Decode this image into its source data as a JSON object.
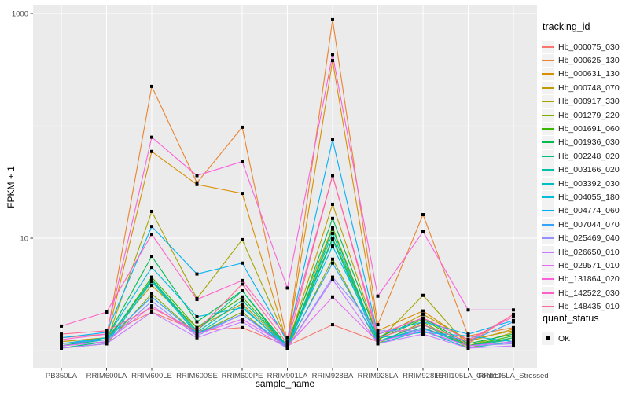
{
  "chart_data": {
    "type": "line",
    "title": "",
    "xlabel": "sample_name",
    "ylabel": "FPKM + 1",
    "y_scale": "log10",
    "ylim": [
      0.7,
      1150
    ],
    "y_ticks": [
      {
        "label": "1000",
        "value": 1000
      },
      {
        "label": "10",
        "value": 10
      }
    ],
    "grid": {
      "major_y": [
        10,
        1000
      ],
      "minor_y": [
        1,
        100
      ],
      "grid_on": true
    },
    "legend_title": "tracking_id",
    "legend_position": "right",
    "legend2": {
      "title": "quant_status",
      "items": [
        "OK"
      ]
    },
    "x_categories": [
      "PB350LA",
      "RRIM600LA",
      "RRIM600LE",
      "RRIM600SE",
      "RRIM600PE",
      "RRIM901LA",
      "RRIM928BA",
      "RRIM928LA",
      "RRIM928LE",
      "RRII105LA_Control",
      "RRII105LA_Stressed"
    ],
    "point_marker": "filled-square",
    "style": {
      "panel_bg": "#EBEBEB",
      "grid_color": "#FFFFFF",
      "point_color": "#000000",
      "tick_label_color": "#4D4D4D",
      "legend_key_bg": "#F2F2F2"
    },
    "series": [
      {
        "name": "Hb_000075_030",
        "color": "#F8766D",
        "values": [
          1.3,
          1.4,
          2.2,
          1.5,
          1.6,
          1.1,
          1.7,
          1.2,
          1.6,
          1.15,
          2.1
        ]
      },
      {
        "name": "Hb_000625_130",
        "color": "#EA8331",
        "values": [
          1.2,
          1.3,
          224,
          31,
          97,
          1.2,
          880,
          1.7,
          16.2,
          1.35,
          1.6
        ]
      },
      {
        "name": "Hb_000631_130",
        "color": "#D89000",
        "values": [
          1.15,
          1.25,
          59,
          30,
          25,
          1.15,
          380,
          1.5,
          2.25,
          1.2,
          1.55
        ]
      },
      {
        "name": "Hb_000748_070",
        "color": "#C09B00",
        "values": [
          1.2,
          1.3,
          3.8,
          1.6,
          2.6,
          1.1,
          20,
          1.3,
          2.1,
          1.25,
          1.5
        ]
      },
      {
        "name": "Hb_000917_330",
        "color": "#A3A500",
        "values": [
          1.1,
          1.2,
          17.3,
          2.9,
          9.7,
          1.2,
          12.5,
          1.2,
          3.1,
          1.1,
          1.45
        ]
      },
      {
        "name": "Hb_001279_220",
        "color": "#7CAE00",
        "values": [
          1.05,
          1.15,
          3.2,
          1.4,
          2.2,
          1.05,
          6.5,
          1.15,
          1.8,
          1.05,
          1.3
        ]
      },
      {
        "name": "Hb_001691_060",
        "color": "#39B600",
        "values": [
          1.1,
          1.2,
          4.5,
          1.6,
          3.0,
          1.1,
          10.0,
          1.25,
          1.9,
          1.1,
          1.35
        ]
      },
      {
        "name": "Hb_001936_030",
        "color": "#00BB4E",
        "values": [
          1.1,
          1.3,
          6.9,
          1.8,
          3.4,
          1.1,
          15.0,
          1.3,
          1.95,
          1.15,
          1.4
        ]
      },
      {
        "name": "Hb_002248_020",
        "color": "#00BF7D",
        "values": [
          1.05,
          1.2,
          4.3,
          1.5,
          3.4,
          1.05,
          12.0,
          1.2,
          1.7,
          1.1,
          1.3
        ]
      },
      {
        "name": "Hb_003166_020",
        "color": "#00C1A3",
        "values": [
          1.1,
          1.25,
          4.2,
          1.45,
          2.8,
          1.1,
          11.0,
          1.2,
          1.6,
          1.1,
          1.25
        ]
      },
      {
        "name": "Hb_003392_030",
        "color": "#00BFC4",
        "values": [
          1.05,
          1.15,
          4.1,
          1.4,
          2.5,
          1.05,
          9.7,
          1.15,
          1.5,
          1.05,
          1.2
        ]
      },
      {
        "name": "Hb_004055_180",
        "color": "#00BBDA",
        "values": [
          1.15,
          1.3,
          5.5,
          2.0,
          2.4,
          1.1,
          8.5,
          1.3,
          1.45,
          1.35,
          1.2
        ]
      },
      {
        "name": "Hb_004774_060",
        "color": "#00B0F6",
        "values": [
          1.3,
          1.45,
          12.7,
          4.8,
          6.0,
          1.2,
          75,
          1.4,
          1.8,
          1.4,
          1.85
        ]
      },
      {
        "name": "Hb_007044_070",
        "color": "#35A2FF",
        "values": [
          1.15,
          1.25,
          3.0,
          1.4,
          2.1,
          1.1,
          6.0,
          1.2,
          1.55,
          1.2,
          1.8
        ]
      },
      {
        "name": "Hb_025469_040",
        "color": "#9590FF",
        "values": [
          1.1,
          1.2,
          2.75,
          1.35,
          2.1,
          1.05,
          4.5,
          1.5,
          1.5,
          1.1,
          1.15
        ]
      },
      {
        "name": "Hb_026650_010",
        "color": "#C77CFF",
        "values": [
          1.05,
          1.15,
          2.2,
          1.3,
          1.8,
          1.05,
          4.3,
          1.15,
          1.4,
          1.05,
          1.1
        ]
      },
      {
        "name": "Hb_029571_010",
        "color": "#E76BF3",
        "values": [
          1.1,
          1.2,
          2.5,
          1.4,
          1.9,
          1.1,
          3.0,
          1.2,
          1.5,
          1.1,
          1.2
        ]
      },
      {
        "name": "Hb_131864_020",
        "color": "#FA62DB",
        "values": [
          1.25,
          1.4,
          79,
          36,
          48,
          3.6,
          430,
          3.05,
          11.4,
          2.3,
          2.3
        ]
      },
      {
        "name": "Hb_142522_030",
        "color": "#FF61C9",
        "values": [
          1.65,
          2.2,
          10.8,
          2.85,
          4.2,
          1.3,
          36,
          1.4,
          1.95,
          1.25,
          2.0
        ]
      },
      {
        "name": "Hb_148435_010",
        "color": "#FF6A98",
        "values": [
          1.4,
          1.5,
          2.4,
          1.5,
          3.9,
          1.15,
          36,
          1.3,
          1.7,
          1.2,
          2.1
        ]
      }
    ]
  }
}
